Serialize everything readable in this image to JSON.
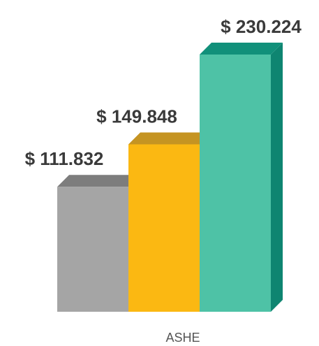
{
  "chart_data": {
    "type": "bar",
    "categories": [
      "ASHE"
    ],
    "series": [
      {
        "values": [
          111.832
        ],
        "label": "$ 111.832",
        "colors": {
          "front": "#a5a5a5",
          "top": "#7d7d7d",
          "side": "#6e6e6e"
        }
      },
      {
        "values": [
          149.848
        ],
        "label": "$ 149.848",
        "colors": {
          "front": "#fbb812",
          "top": "#c59422",
          "side": "#a67d1b"
        }
      },
      {
        "values": [
          230.224
        ],
        "label": "$ 230.224",
        "colors": {
          "front": "#4ec2a6",
          "top": "#11907a",
          "side": "#0e8571"
        }
      }
    ],
    "xlabel": "",
    "ylabel": "",
    "grid": false
  }
}
